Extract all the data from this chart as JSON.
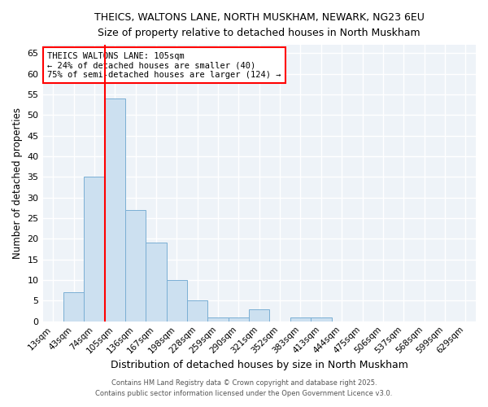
{
  "title_line1": "THEICS, WALTONS LANE, NORTH MUSKHAM, NEWARK, NG23 6EU",
  "title_line2": "Size of property relative to detached houses in North Muskham",
  "xlabel": "Distribution of detached houses by size in North Muskham",
  "ylabel": "Number of detached properties",
  "categories": [
    "13sqm",
    "43sqm",
    "74sqm",
    "105sqm",
    "136sqm",
    "167sqm",
    "198sqm",
    "228sqm",
    "259sqm",
    "290sqm",
    "321sqm",
    "352sqm",
    "383sqm",
    "413sqm",
    "444sqm",
    "475sqm",
    "506sqm",
    "537sqm",
    "568sqm",
    "599sqm",
    "629sqm"
  ],
  "values": [
    0,
    7,
    35,
    54,
    27,
    19,
    10,
    5,
    1,
    1,
    3,
    0,
    1,
    1,
    0,
    0,
    0,
    0,
    0,
    0,
    0
  ],
  "bar_color": "#cce0f0",
  "bar_edge_color": "#7aafd4",
  "red_line_index": 3,
  "ylim": [
    0,
    67
  ],
  "yticks": [
    0,
    5,
    10,
    15,
    20,
    25,
    30,
    35,
    40,
    45,
    50,
    55,
    60,
    65
  ],
  "annotation_title": "THEICS WALTONS LANE: 105sqm",
  "annotation_line2": "← 24% of detached houses are smaller (40)",
  "annotation_line3": "75% of semi-detached houses are larger (124) →",
  "footer_line1": "Contains HM Land Registry data © Crown copyright and database right 2025.",
  "footer_line2": "Contains public sector information licensed under the Open Government Licence v3.0.",
  "bg_color": "#ffffff",
  "plot_bg_color": "#eef3f8"
}
